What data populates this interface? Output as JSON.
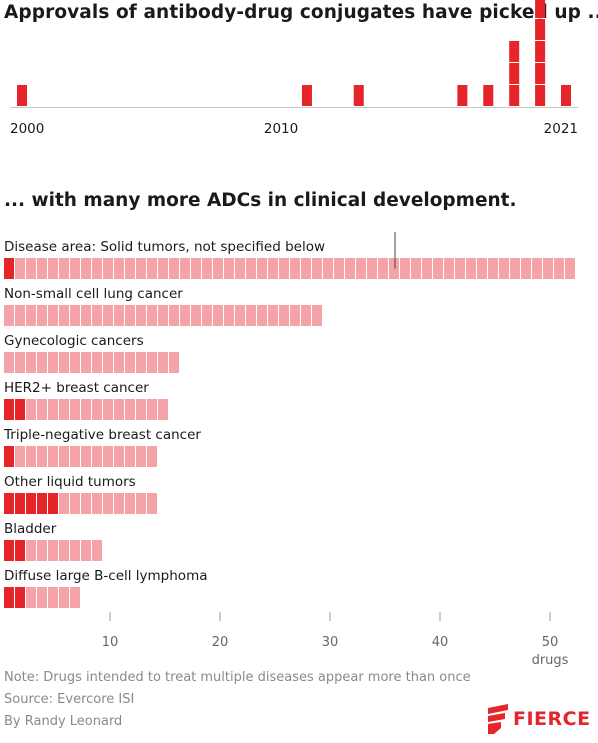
{
  "header": {
    "title_top": "Approvals of antibody-drug conjugates have picked up ...",
    "title_bottom": "... with many more ADCs in clinical development."
  },
  "colors": {
    "approved": "#e6252b",
    "development": "#f4a3a8",
    "cell_divider": "#ffffff",
    "axis_line": "#c8c8c8"
  },
  "chart_data": [
    {
      "type": "bar",
      "title": "Approvals of antibody-drug conjugates have picked up ...",
      "x_tick_labels": [
        "2000",
        "2010",
        "2021"
      ],
      "xlim": [
        2000,
        2021
      ],
      "x": [
        2000,
        2011,
        2013,
        2017,
        2018,
        2019,
        2020,
        2021
      ],
      "values": [
        1,
        1,
        1,
        1,
        1,
        3,
        5,
        1
      ]
    },
    {
      "type": "bar",
      "orientation": "horizontal",
      "title": "... with many more ADCs in clinical development.",
      "categories": [
        "Disease area: Solid tumors, not specified below",
        "Non-small cell lung cancer",
        "Gynecologic cancers",
        "HER2+ breast cancer",
        "Triple-negative breast cancer",
        "Other liquid tumors",
        "Bladder",
        "Diffuse large B-cell lymphoma"
      ],
      "series": [
        {
          "name": "approved",
          "values": [
            1,
            0,
            0,
            2,
            1,
            5,
            2,
            2
          ]
        },
        {
          "name": "in development",
          "values": [
            51,
            29,
            16,
            13,
            13,
            9,
            7,
            5
          ]
        }
      ],
      "x_ticks": [
        10,
        20,
        30,
        40,
        50
      ],
      "x_unit": "drugs",
      "xlim": [
        0,
        52
      ],
      "marker_value": 36
    }
  ],
  "footer": {
    "note": "Note: Drugs intended to treat multiple diseases appear more than once",
    "source": "Source: Evercore ISI",
    "byline": "By Randy Leonard",
    "logo_text": "FIERCE"
  }
}
